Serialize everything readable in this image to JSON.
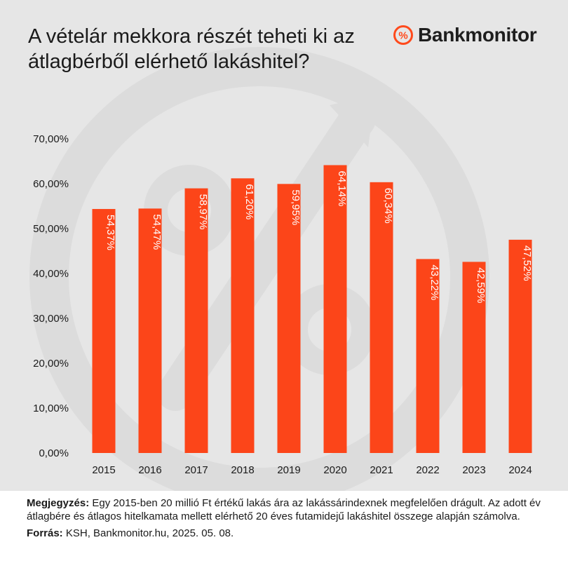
{
  "header": {
    "title": "A vételár mekkora részét teheti ki az átlagbérből elérhető lakáshitel?",
    "brand": "Bankmonitor",
    "brand_symbol": "%"
  },
  "colors": {
    "bar": "#fc4519",
    "card_background": "#e6e6e6",
    "watermark": "#dadada",
    "brand_accent": "#ff4a1c",
    "text": "#1a1a1a"
  },
  "chart_data": {
    "type": "bar",
    "title": "A vételár mekkora részét teheti ki az átlagbérből elérhető lakáshitel?",
    "categories": [
      "2015",
      "2016",
      "2017",
      "2018",
      "2019",
      "2020",
      "2021",
      "2022",
      "2023",
      "2024"
    ],
    "values": [
      54.37,
      54.47,
      58.97,
      61.2,
      59.95,
      64.14,
      60.34,
      43.22,
      42.59,
      47.52
    ],
    "data_labels": [
      "54,37%",
      "54,47%",
      "58,97%",
      "61,20%",
      "59,95%",
      "64,14%",
      "60,34%",
      "43,22%",
      "42,59%",
      "47,52%"
    ],
    "yticks": [
      0,
      10,
      20,
      30,
      40,
      50,
      60,
      70
    ],
    "ytick_labels": [
      "0,00%",
      "10,00%",
      "20,00%",
      "30,00%",
      "40,00%",
      "50,00%",
      "60,00%",
      "70,00%"
    ],
    "ylim": [
      0,
      70
    ],
    "xlabel": "",
    "ylabel": "",
    "grid": false,
    "legend": "none",
    "data_label_orientation": "vertical"
  },
  "notes": {
    "note_label": "Megjegyzés:",
    "note_text": " Egy 2015-ben 20 millió Ft értékű lakás ára az lakássárindexnek megfelelően drágult. Az adott év átlagbére és átlagos hitelkamata mellett elérhető 20 éves futamidejű lakáshitel összege alapján számolva.",
    "source_label": "Forrás:",
    "source_text": " KSH, Bankmonitor.hu, 2025. 05. 08."
  }
}
